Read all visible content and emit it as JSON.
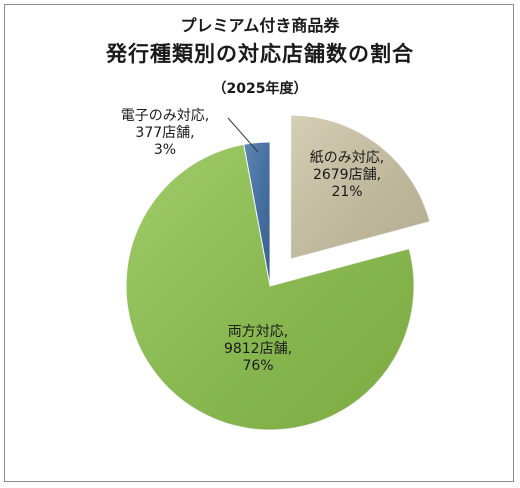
{
  "chart_data": {
    "type": "pie",
    "title": "プレミアム付き商品券",
    "subtitle": "発行種類別の対応店舗数の割合",
    "period": "（2025年度）",
    "exploded": "紙のみ対応",
    "slices": [
      {
        "name": "電子のみ対応",
        "stores": 377,
        "percent": 3,
        "label": [
          "電子のみ対応,",
          "377店舗,",
          "3%"
        ],
        "color": "#3e6ea6"
      },
      {
        "name": "紙のみ対応",
        "stores": 2679,
        "percent": 21,
        "label": [
          "紙のみ対応,",
          "2679店舗,",
          "21%"
        ],
        "color": "#cdc5a5"
      },
      {
        "name": "両方対応",
        "stores": 9812,
        "percent": 76,
        "label": [
          "両方対応,",
          "9812店舗,",
          "76%"
        ],
        "color": "#8cc34a"
      }
    ]
  }
}
